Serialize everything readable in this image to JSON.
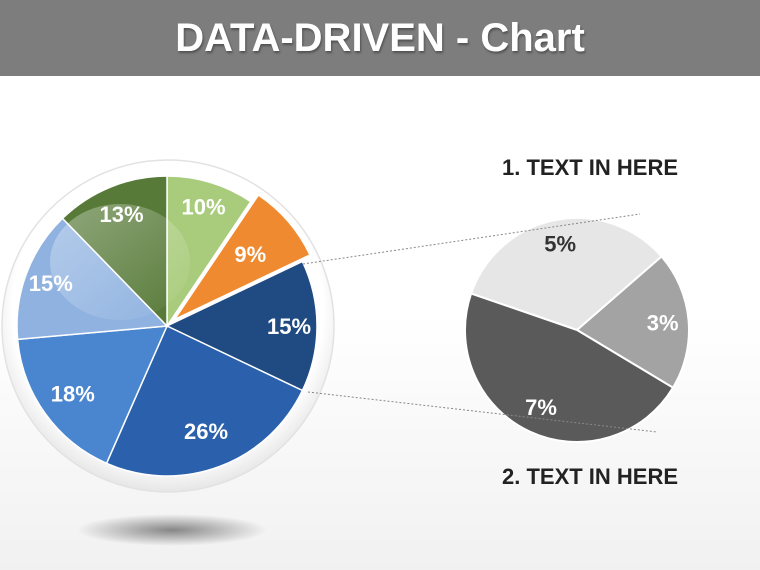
{
  "header": {
    "title": "DATA-DRIVEN - Chart"
  },
  "chart_data": [
    {
      "type": "pie",
      "values": [
        10,
        9,
        15,
        26,
        18,
        15,
        13
      ],
      "labels": [
        "10%",
        "9%",
        "15%",
        "26%",
        "18%",
        "15%",
        "13%"
      ],
      "colors": [
        "#a9cc7c",
        "#ef8a30",
        "#1f4a82",
        "#2a60ac",
        "#4a86cf",
        "#8fb2e0",
        "#577a38"
      ],
      "exploded_slice_index": 1
    },
    {
      "type": "pie",
      "values": [
        5,
        3,
        7
      ],
      "labels": [
        "5%",
        "3%",
        "7%"
      ],
      "colors": [
        "#e6e6e6",
        "#a3a3a3",
        "#5a5a5a"
      ],
      "annotations": [
        "1. TEXT IN HERE",
        "2. TEXT IN HERE"
      ]
    }
  ]
}
